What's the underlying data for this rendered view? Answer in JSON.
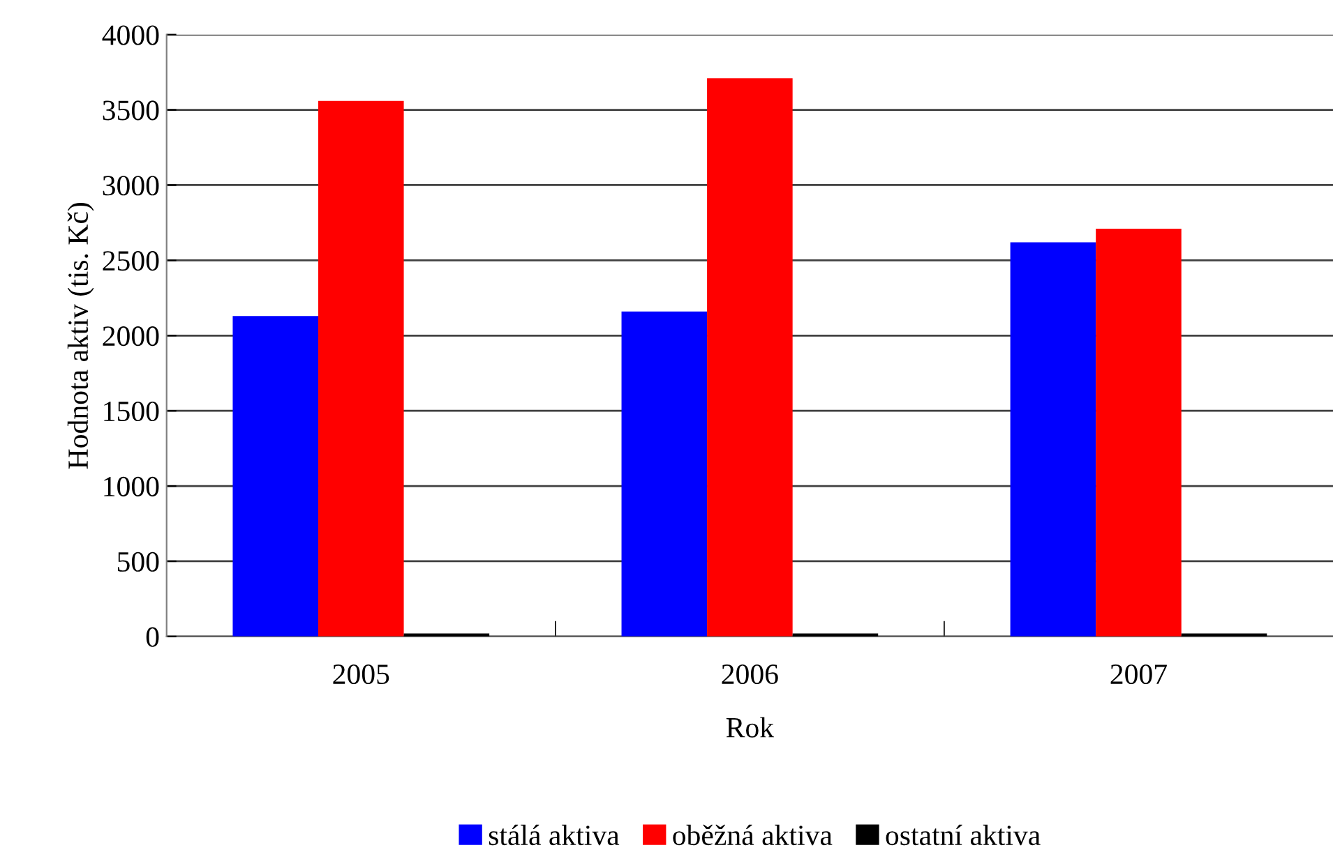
{
  "chart_data": {
    "type": "bar",
    "categories": [
      "2005",
      "2006",
      "2007"
    ],
    "xlabel": "Rok",
    "ylabel": "Hodnota aktiv (tis. Kč)",
    "series": [
      {
        "name": "stálá aktiva",
        "color": "#0000ff",
        "values": [
          2130,
          2160,
          2620
        ]
      },
      {
        "name": "oběžná aktiva",
        "color": "#ff0000",
        "values": [
          3560,
          3710,
          2710
        ]
      },
      {
        "name": "ostatní aktiva",
        "color": "#000000",
        "values": [
          20,
          20,
          20
        ]
      }
    ],
    "ylim": [
      0,
      4000
    ],
    "yticks": [
      0,
      500,
      1000,
      1500,
      2000,
      2500,
      3000,
      3500,
      4000
    ],
    "grid": "y",
    "legend": "bottom"
  }
}
